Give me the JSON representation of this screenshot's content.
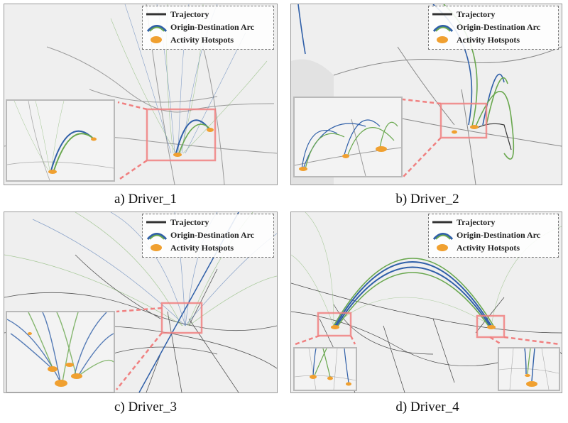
{
  "legend": {
    "trajectory": "Trajectory",
    "od_arc": "Origin-Destination Arc",
    "hotspots": "Activity Hotspots"
  },
  "panels": [
    {
      "caption": "a) Driver_1"
    },
    {
      "caption": "b) Driver_2"
    },
    {
      "caption": "c) Driver_3"
    },
    {
      "caption": "d) Driver_4"
    }
  ],
  "colors": {
    "arc_blue": "#2f5fa8",
    "arc_green": "#6aa84f",
    "trajectory": "#333333",
    "hotspot": "#f0a030",
    "highlight": "#f08080"
  }
}
